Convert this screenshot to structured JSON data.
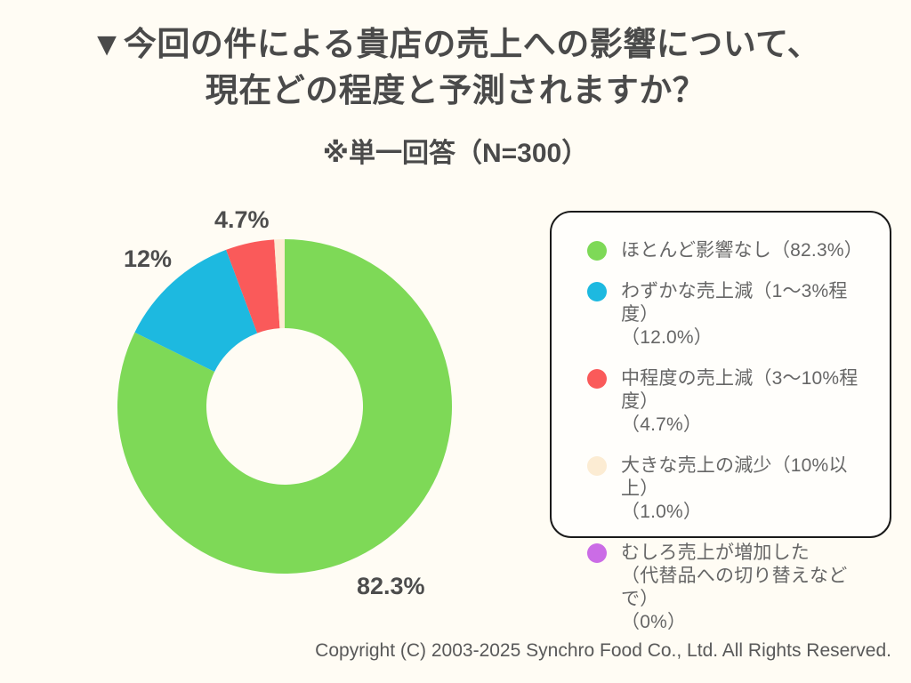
{
  "page": {
    "background": "#fffcf4",
    "title_line1": "▼今回の件による貴店の売上への影響について、",
    "title_line2": "現在どの程度と予測されますか？",
    "subtitle": "※単一回答（N=300）",
    "footer": "Copyright (C) 2003-2025  Synchro Food Co., Ltd. All Rights Reserved."
  },
  "chart_data": {
    "type": "pie",
    "variant": "donut",
    "title": "今回の件による貴店の売上への影響について、現在どの程度と予測されますか？",
    "note": "※単一回答",
    "sample_size": "N=300",
    "start_angle_deg": 0,
    "direction": "clockwise",
    "inner_radius_ratio": 0.47,
    "legend_position": "right",
    "series": [
      {
        "label": "ほとんど影響なし",
        "value": 82.3,
        "color": "#7ed957",
        "callout": "82.3%"
      },
      {
        "label": "わずかな売上減（1〜3%程度）",
        "value": 12.0,
        "color": "#1db9e0",
        "callout": "12%"
      },
      {
        "label": "中程度の売上減（3〜10%程度）",
        "value": 4.7,
        "color": "#fa5a5a",
        "callout": "4.7%"
      },
      {
        "label": "大きな売上の減少（10%以上）",
        "value": 1.0,
        "color": "#fcecd3",
        "callout": ""
      },
      {
        "label": "むしろ売上が増加した（代替品への切り替えなどで）",
        "value": 0,
        "color": "#cb6ce6",
        "callout": ""
      }
    ],
    "legend": [
      {
        "color": "#7ed957",
        "lines": [
          "ほとんど影響なし（82.3%）"
        ]
      },
      {
        "color": "#1db9e0",
        "lines": [
          "わずかな売上減（1〜3%程度）",
          "（12.0%）"
        ]
      },
      {
        "color": "#fa5a5a",
        "lines": [
          "中程度の売上減（3〜10%程度）",
          "（4.7%）"
        ]
      },
      {
        "color": "#fcecd3",
        "lines": [
          "大きな売上の減少（10%以上）",
          "（1.0%）"
        ]
      },
      {
        "color": "#cb6ce6",
        "lines": [
          "むしろ売上が増加した",
          "（代替品への切り替えなどで）",
          "（0%）"
        ]
      }
    ]
  }
}
